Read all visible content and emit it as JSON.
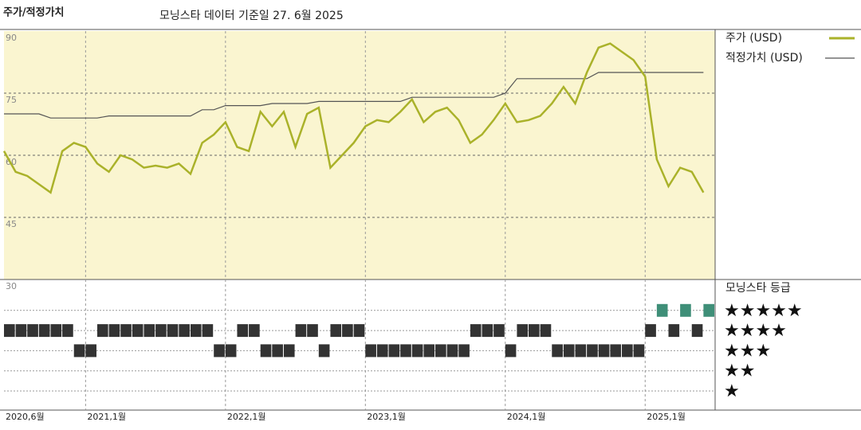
{
  "chart_data": {
    "type": "line",
    "title": "주가/적정가치",
    "subtitle": "모닝스타 데이터 기준일 27. 6월 2025",
    "x": [
      "2020-06",
      "2020-07",
      "2020-08",
      "2020-09",
      "2020-10",
      "2020-11",
      "2020-12",
      "2021-01",
      "2021-02",
      "2021-03",
      "2021-04",
      "2021-05",
      "2021-06",
      "2021-07",
      "2021-08",
      "2021-09",
      "2021-10",
      "2021-11",
      "2021-12",
      "2022-01",
      "2022-02",
      "2022-03",
      "2022-04",
      "2022-05",
      "2022-06",
      "2022-07",
      "2022-08",
      "2022-09",
      "2022-10",
      "2022-11",
      "2022-12",
      "2023-01",
      "2023-02",
      "2023-03",
      "2023-04",
      "2023-05",
      "2023-06",
      "2023-07",
      "2023-08",
      "2023-09",
      "2023-10",
      "2023-11",
      "2023-12",
      "2024-01",
      "2024-02",
      "2024-03",
      "2024-04",
      "2024-05",
      "2024-06",
      "2024-07",
      "2024-08",
      "2024-09",
      "2024-10",
      "2024-11",
      "2024-12",
      "2025-01",
      "2025-02",
      "2025-03",
      "2025-04",
      "2025-05",
      "2025-06"
    ],
    "series": [
      {
        "name": "주가 (USD)",
        "color": "#aab22a",
        "values": [
          61,
          56,
          55,
          53,
          51,
          61,
          63,
          62,
          58,
          56,
          60,
          59,
          57,
          57.5,
          57,
          58,
          55.5,
          63,
          65,
          68,
          62,
          61,
          70.5,
          67,
          70.5,
          62,
          70,
          71.5,
          57,
          60,
          63,
          67,
          68.5,
          68,
          70.5,
          73.5,
          68,
          70.5,
          71.5,
          68.5,
          63,
          65,
          68.5,
          72.5,
          68,
          68.5,
          69.5,
          72.5,
          76.5,
          72.5,
          80,
          86,
          87,
          85,
          83,
          79,
          59,
          52.5,
          57,
          56,
          51
        ]
      },
      {
        "name": "적정가치 (USD)",
        "color": "#555555",
        "values": [
          70,
          70,
          70,
          70,
          69,
          69,
          69,
          69,
          69,
          69.5,
          69.5,
          69.5,
          69.5,
          69.5,
          69.5,
          69.5,
          69.5,
          71,
          71,
          72,
          72,
          72,
          72,
          72.5,
          72.5,
          72.5,
          72.5,
          73,
          73,
          73,
          73,
          73,
          73,
          73,
          73,
          74,
          74,
          74,
          74,
          74,
          74,
          74,
          74,
          75,
          78.5,
          78.5,
          78.5,
          78.5,
          78.5,
          78.5,
          78.5,
          80,
          80,
          80,
          80,
          80,
          80,
          80,
          80,
          80,
          80
        ]
      }
    ],
    "ratings": {
      "name": "모닝스타 등급",
      "labels": [
        "★",
        "★★",
        "★★★",
        "★★★★",
        "★★★★★"
      ],
      "colors": {
        "default": "#333333",
        "top": "#3f8f78"
      },
      "values": [
        4,
        4,
        4,
        4,
        4,
        4,
        3,
        3,
        4,
        4,
        4,
        4,
        4,
        4,
        4,
        4,
        4,
        4,
        3,
        3,
        4,
        4,
        3,
        3,
        3,
        4,
        4,
        3,
        4,
        4,
        4,
        3,
        3,
        3,
        3,
        3,
        3,
        3,
        3,
        3,
        4,
        4,
        4,
        3,
        4,
        4,
        4,
        3,
        3,
        3,
        3,
        3,
        3,
        3,
        3,
        4,
        5,
        4,
        5,
        4,
        5
      ]
    },
    "xlim": [
      "2020-06",
      "2025-07"
    ],
    "xticks": [
      {
        "value": "2020-06",
        "label": "2020,6월"
      },
      {
        "value": "2021-01",
        "label": "2021,1월"
      },
      {
        "value": "2022-01",
        "label": "2022,1월"
      },
      {
        "value": "2023-01",
        "label": "2023,1월"
      },
      {
        "value": "2024-01",
        "label": "2024,1월"
      },
      {
        "value": "2025-01",
        "label": "2025,1월"
      }
    ],
    "ylim": [
      30,
      90
    ],
    "yticks": [
      30,
      45,
      60,
      75,
      90
    ],
    "grid": true,
    "background": "#faf5d0"
  }
}
